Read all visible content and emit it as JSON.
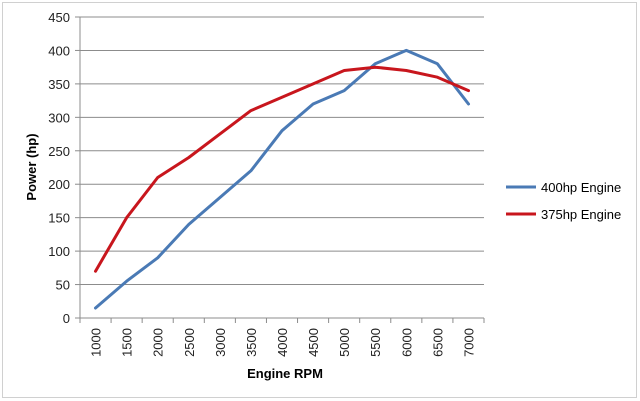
{
  "chart_data": {
    "type": "line",
    "title": "",
    "xlabel": "Engine RPM",
    "ylabel": "Power (hp)",
    "categories": [
      "1000",
      "1500",
      "2000",
      "2500",
      "3000",
      "3500",
      "4000",
      "4500",
      "5000",
      "5500",
      "6000",
      "6500",
      "7000"
    ],
    "ylim": [
      0,
      450
    ],
    "yticks": [
      0,
      50,
      100,
      150,
      200,
      250,
      300,
      350,
      400,
      450
    ],
    "grid": "horizontal",
    "legend_position": "right",
    "series": [
      {
        "name": "400hp Engine",
        "color": "#4a7ab5",
        "values": [
          15,
          55,
          90,
          140,
          180,
          220,
          280,
          320,
          340,
          380,
          400,
          380,
          320
        ]
      },
      {
        "name": "375hp Engine",
        "color": "#c8161d",
        "values": [
          70,
          150,
          210,
          240,
          275,
          310,
          330,
          350,
          370,
          375,
          370,
          360,
          340
        ]
      }
    ]
  }
}
